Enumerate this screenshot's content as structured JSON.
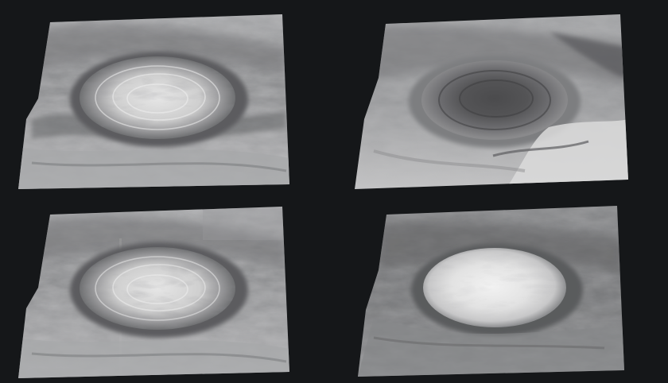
{
  "figure": {
    "background": "#151719",
    "panels": [
      {
        "id": "top-left",
        "subject": "storm-vortex",
        "tone": "light-grey"
      },
      {
        "id": "top-right",
        "subject": "storm-vortex",
        "tone": "dark-center"
      },
      {
        "id": "bottom-left",
        "subject": "storm-vortex",
        "tone": "light-grey"
      },
      {
        "id": "bottom-right",
        "subject": "storm-vortex",
        "tone": "bright-center"
      }
    ]
  }
}
